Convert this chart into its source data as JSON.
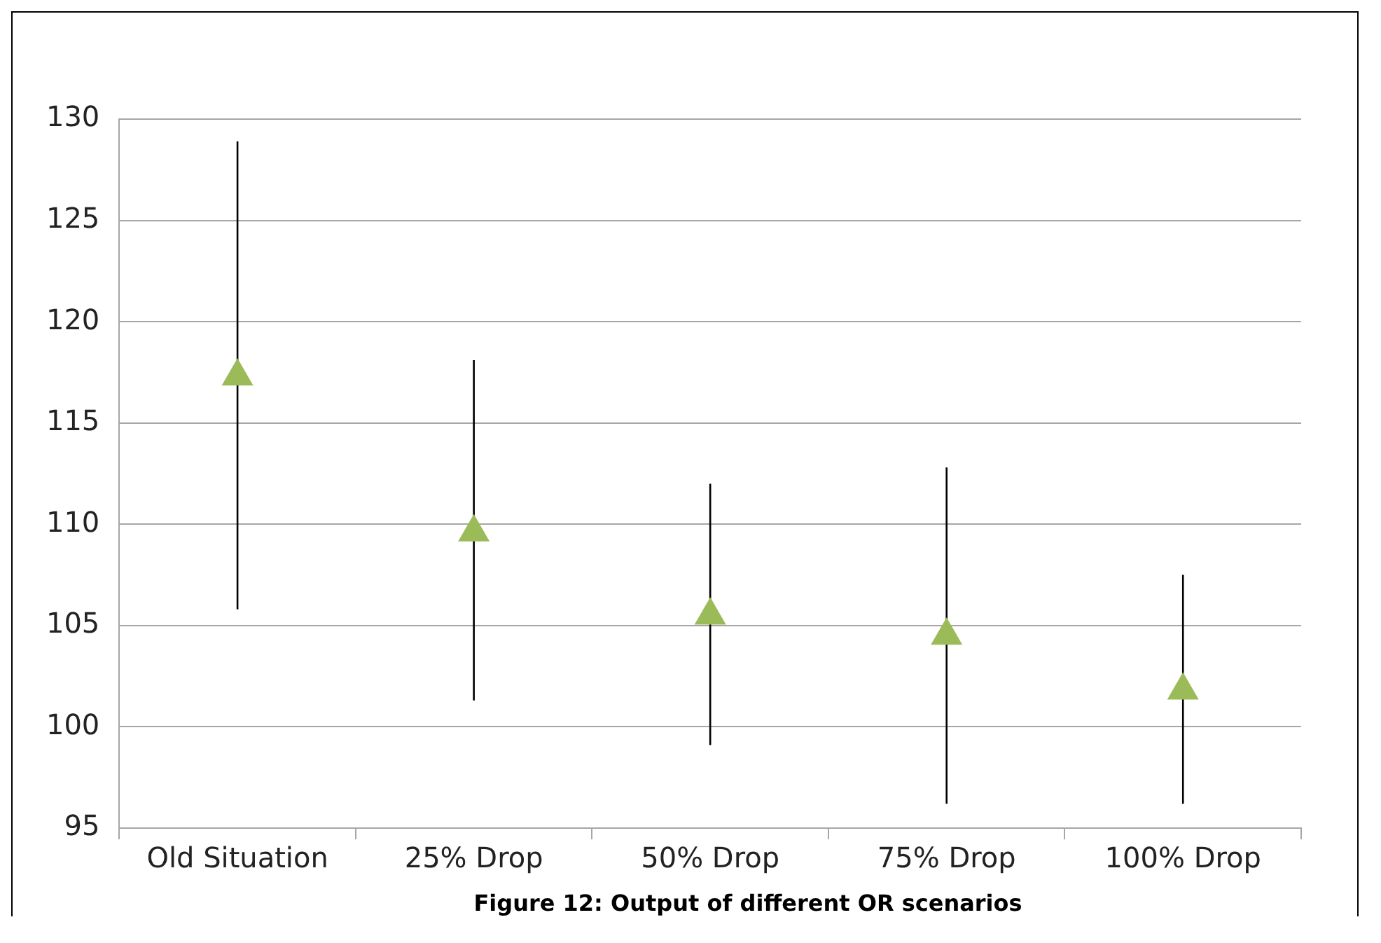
{
  "chart_data": {
    "type": "scatter",
    "categories": [
      "Old Situation",
      "25% Drop",
      "50% Drop",
      "75% Drop",
      "100% Drop"
    ],
    "series": [
      {
        "color": "#9bbb59",
        "values": [
          117.3,
          109.6,
          105.5,
          104.5,
          101.8
        ],
        "errors": [
          [
            105.8,
            128.9
          ],
          [
            101.3,
            118.1
          ],
          [
            99.1,
            112.0
          ],
          [
            96.2,
            112.8
          ],
          [
            96.2,
            107.5
          ]
        ]
      }
    ],
    "ylim": [
      95,
      130
    ],
    "yticks": [
      95,
      100,
      105,
      110,
      115,
      120,
      125,
      130
    ],
    "grid": "y",
    "marker": "triangle",
    "annotations": [
      "Figure 12: Output of different OR scenarios"
    ]
  }
}
